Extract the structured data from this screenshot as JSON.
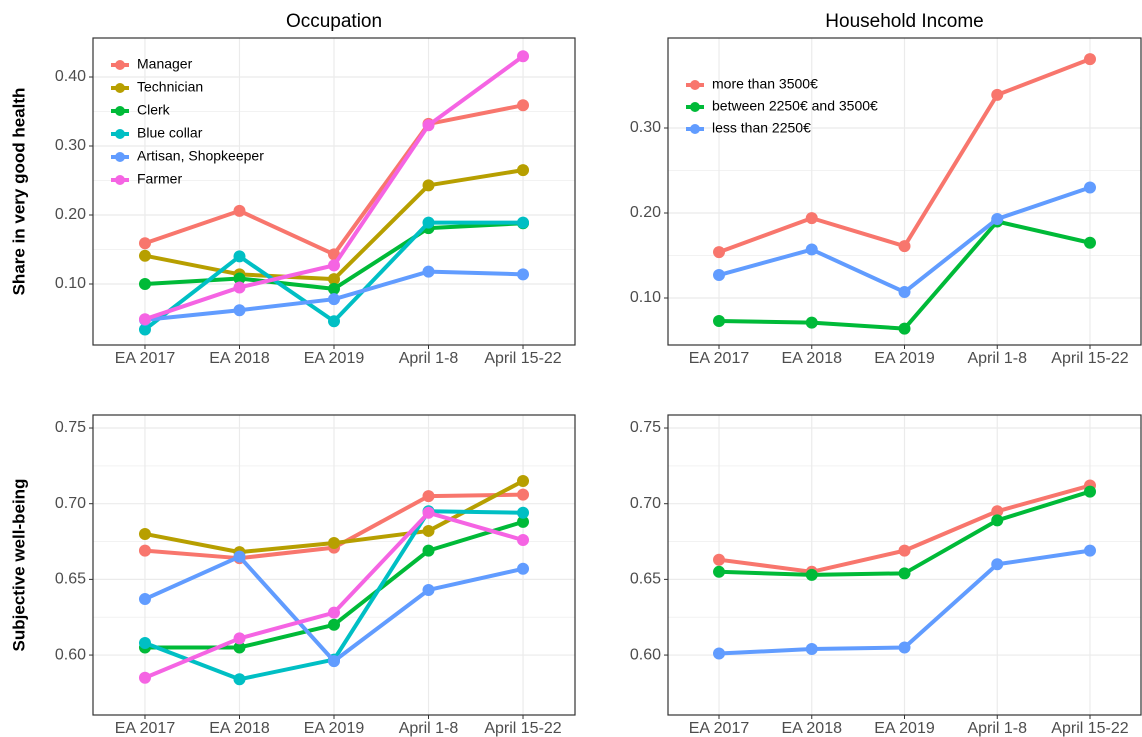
{
  "chart_data": [
    {
      "type": "line",
      "title": "Occupation",
      "ylabel": "Share in very good health",
      "categories": [
        "EA 2017",
        "EA 2018",
        "EA 2019",
        "April 1-8",
        "April 15-22"
      ],
      "ylim": [
        0.0116,
        0.4565
      ],
      "yticks": [
        {
          "value": 0.1,
          "label": "0.10"
        },
        {
          "value": 0.2,
          "label": "0.20"
        },
        {
          "value": 0.3,
          "label": "0.30"
        },
        {
          "value": 0.4,
          "label": "0.40"
        }
      ],
      "grid": true,
      "legend": "top-left",
      "series": [
        {
          "name": "Manager",
          "color": "#F8766D",
          "values": [
            0.159,
            0.206,
            0.143,
            0.332,
            0.359
          ]
        },
        {
          "name": "Technician",
          "color": "#B79F00",
          "values": [
            0.141,
            0.114,
            0.107,
            0.243,
            0.265
          ]
        },
        {
          "name": "Clerk",
          "color": "#00BA38",
          "values": [
            0.1,
            0.108,
            0.093,
            0.181,
            0.188
          ]
        },
        {
          "name": "Blue collar",
          "color": "#00BFC4",
          "values": [
            0.034,
            0.14,
            0.046,
            0.189,
            0.189
          ]
        },
        {
          "name": "Artisan, Shopkeeper",
          "color": "#619CFF",
          "values": [
            0.048,
            0.062,
            0.078,
            0.118,
            0.114
          ]
        },
        {
          "name": "Farmer",
          "color": "#F564E3",
          "values": [
            0.049,
            0.095,
            0.127,
            0.33,
            0.43
          ]
        }
      ]
    },
    {
      "type": "line",
      "title": "Household Income",
      "categories": [
        "EA 2017",
        "EA 2018",
        "EA 2019",
        "April 1-8",
        "April 15-22"
      ],
      "ylim": [
        0.0447,
        0.4059
      ],
      "yticks": [
        {
          "value": 0.1,
          "label": "0.10"
        },
        {
          "value": 0.2,
          "label": "0.20"
        },
        {
          "value": 0.3,
          "label": "0.30"
        }
      ],
      "grid": true,
      "legend": "top-left",
      "series": [
        {
          "name": "more than 3500€",
          "color": "#F8766D",
          "values": [
            0.154,
            0.194,
            0.161,
            0.339,
            0.381
          ]
        },
        {
          "name": "between 2250€ and 3500€",
          "color": "#00BA38",
          "values": [
            0.073,
            0.071,
            0.064,
            0.19,
            0.165
          ]
        },
        {
          "name": "less than 2250€",
          "color": "#619CFF",
          "values": [
            0.127,
            0.157,
            0.107,
            0.193,
            0.23
          ]
        }
      ]
    },
    {
      "type": "line",
      "ylabel": "Subjective well-being",
      "categories": [
        "EA 2017",
        "EA 2018",
        "EA 2019",
        "April 1-8",
        "April 15-22"
      ],
      "ylim": [
        0.5604,
        0.7586
      ],
      "yticks": [
        {
          "value": 0.6,
          "label": "0.60"
        },
        {
          "value": 0.65,
          "label": "0.65"
        },
        {
          "value": 0.7,
          "label": "0.70"
        },
        {
          "value": 0.75,
          "label": "0.75"
        }
      ],
      "grid": true,
      "series": [
        {
          "color": "#F8766D",
          "values": [
            0.669,
            0.664,
            0.671,
            0.705,
            0.706
          ]
        },
        {
          "color": "#B79F00",
          "values": [
            0.68,
            0.668,
            0.674,
            0.682,
            0.715
          ]
        },
        {
          "color": "#00BA38",
          "values": [
            0.605,
            0.605,
            0.62,
            0.669,
            0.688
          ]
        },
        {
          "color": "#00BFC4",
          "values": [
            0.608,
            0.584,
            0.597,
            0.695,
            0.694
          ]
        },
        {
          "color": "#619CFF",
          "values": [
            0.637,
            0.665,
            0.596,
            0.643,
            0.657
          ]
        },
        {
          "color": "#F564E3",
          "values": [
            0.585,
            0.611,
            0.628,
            0.694,
            0.676
          ]
        }
      ]
    },
    {
      "type": "line",
      "categories": [
        "EA 2017",
        "EA 2018",
        "EA 2019",
        "April 1-8",
        "April 15-22"
      ],
      "ylim": [
        0.5604,
        0.7586
      ],
      "yticks": [
        {
          "value": 0.6,
          "label": "0.60"
        },
        {
          "value": 0.65,
          "label": "0.65"
        },
        {
          "value": 0.7,
          "label": "0.70"
        },
        {
          "value": 0.75,
          "label": "0.75"
        }
      ],
      "grid": true,
      "series": [
        {
          "color": "#F8766D",
          "values": [
            0.663,
            0.655,
            0.669,
            0.695,
            0.712
          ]
        },
        {
          "color": "#00BA38",
          "values": [
            0.655,
            0.653,
            0.654,
            0.689,
            0.708
          ]
        },
        {
          "color": "#619CFF",
          "values": [
            0.601,
            0.604,
            0.605,
            0.66,
            0.669
          ]
        }
      ]
    }
  ]
}
